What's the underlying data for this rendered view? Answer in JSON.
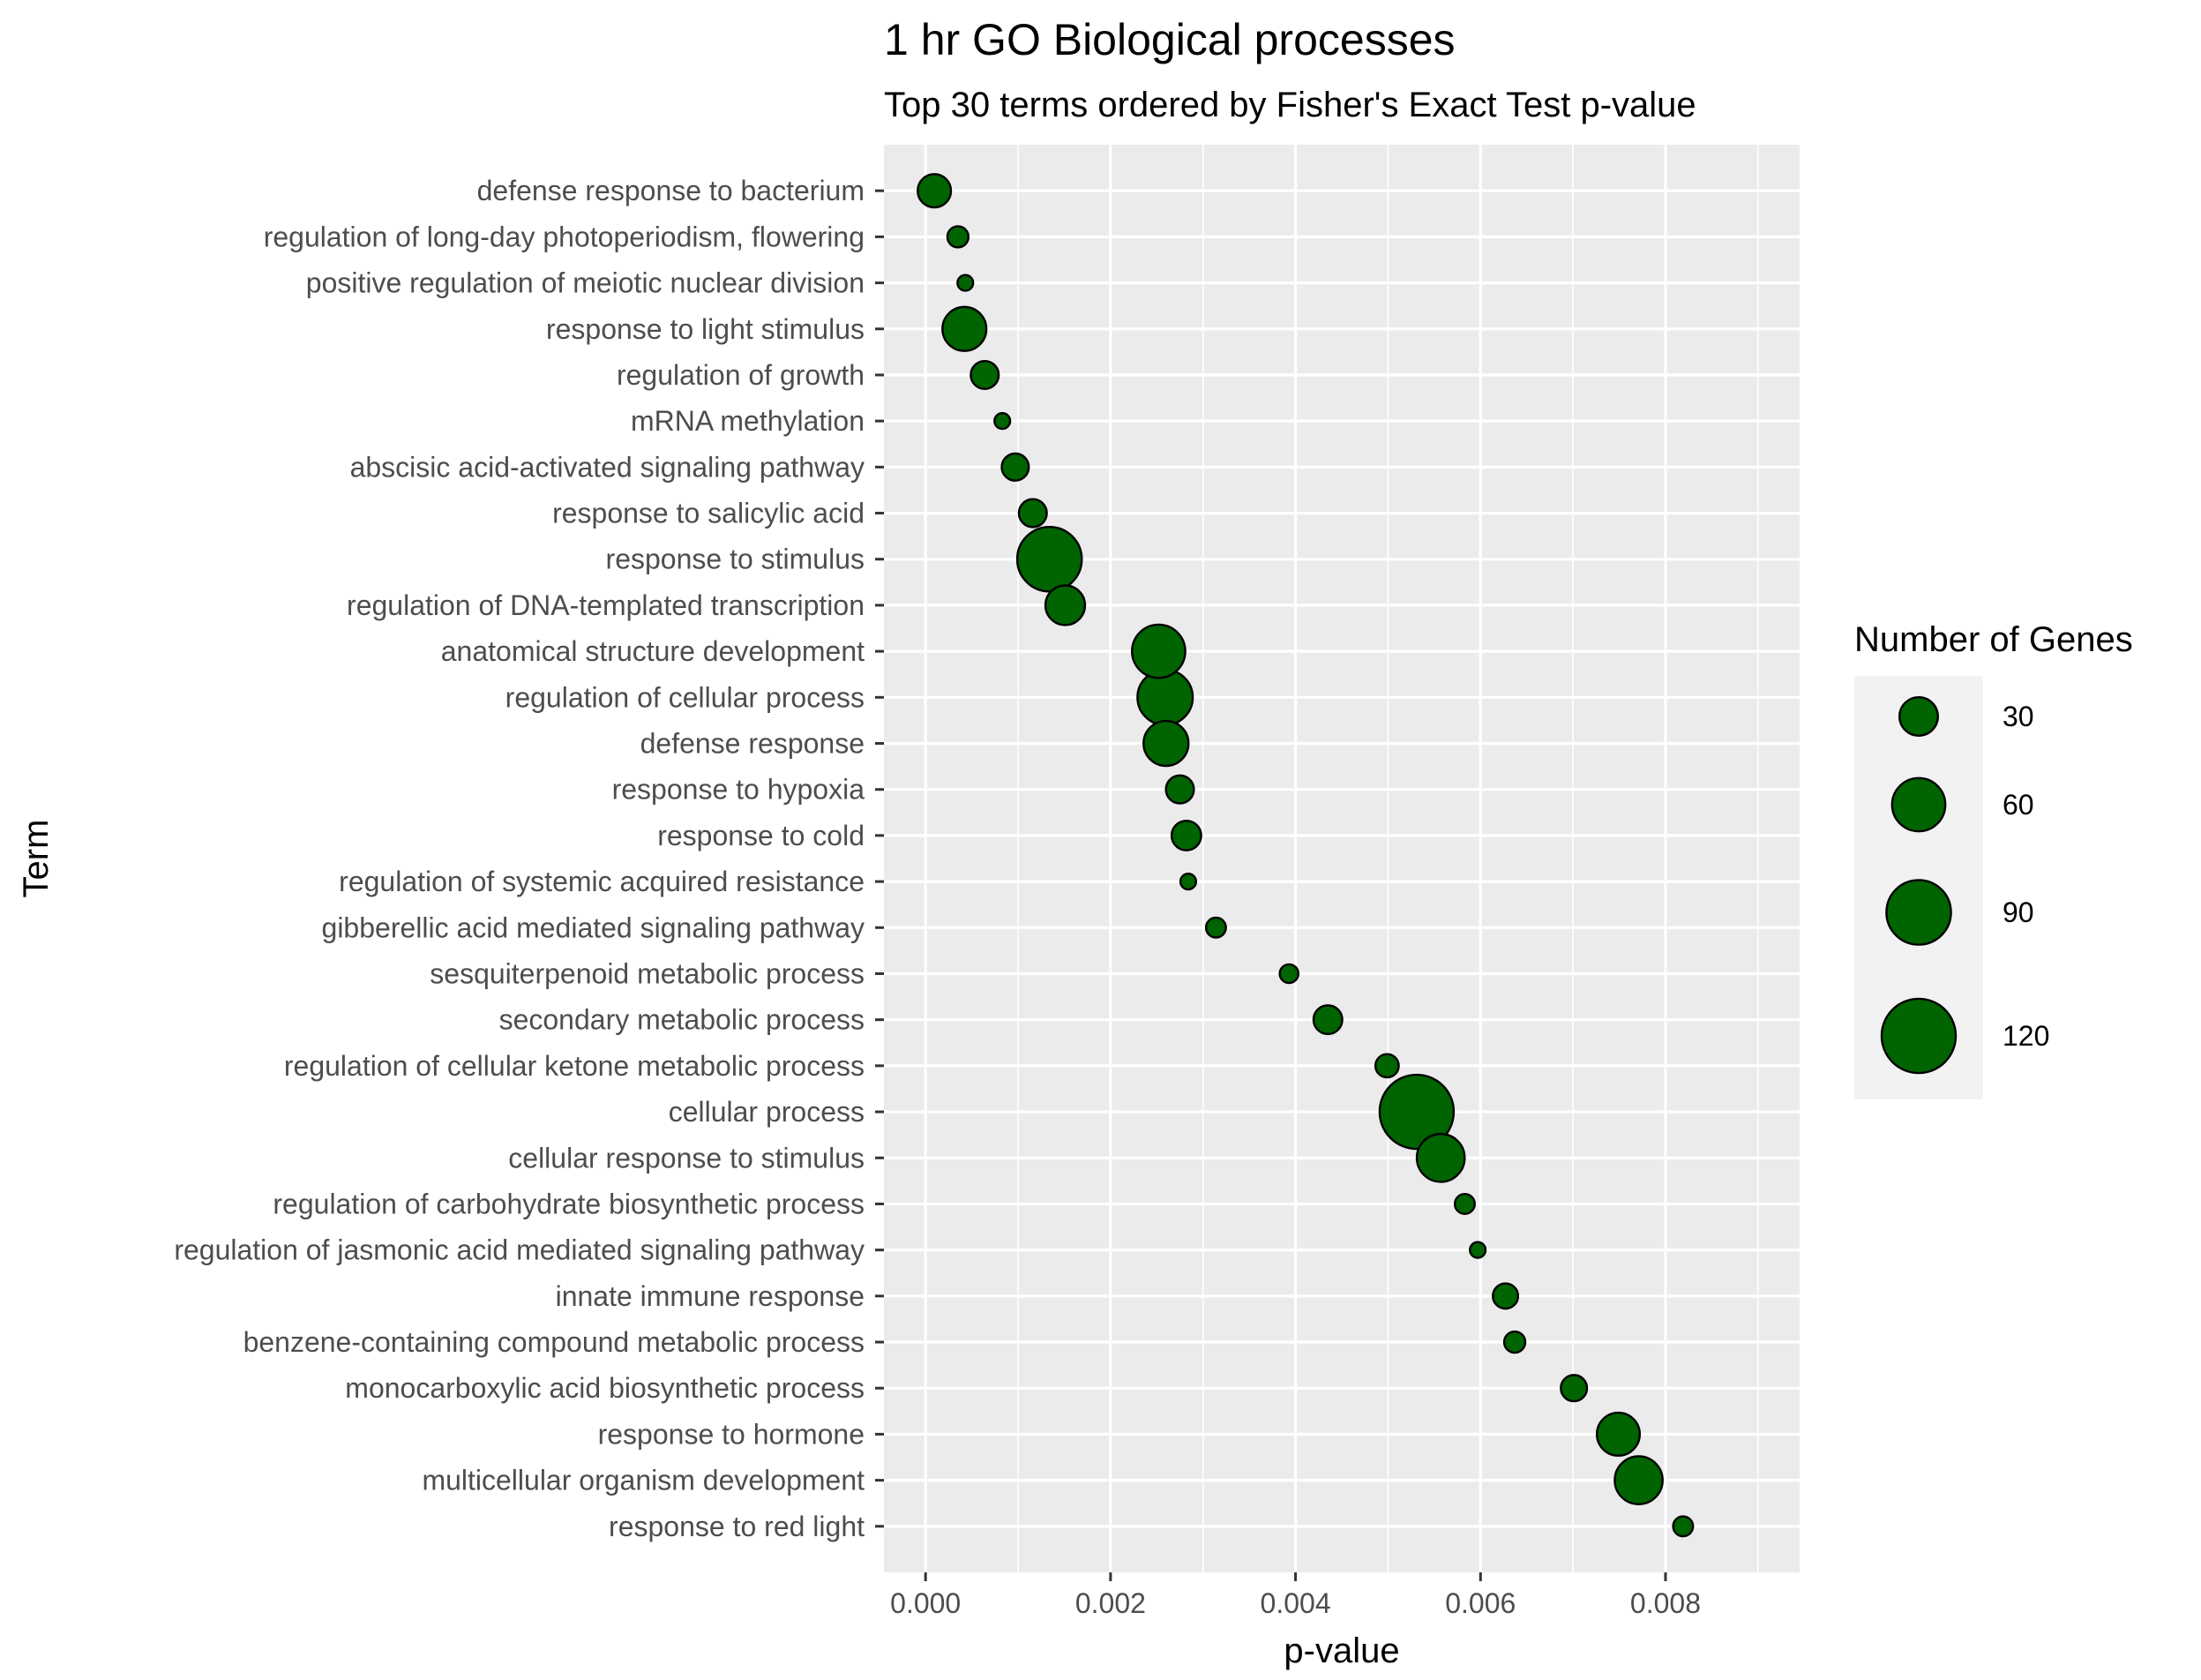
{
  "chart_data": {
    "type": "scatter",
    "title": "1 hr GO Biological processes",
    "subtitle": "Top 30 terms ordered by Fisher's Exact Test p-value",
    "xlabel": "p-value",
    "ylabel": "Term",
    "xlim": [
      -0.00045,
      0.00945
    ],
    "x_ticks": [
      "0.000",
      "0.002",
      "0.004",
      "0.006",
      "0.008"
    ],
    "grid": true,
    "legend_position": "right",
    "marker_fill": "#006400",
    "marker_stroke": "#000000",
    "panel_background": "#EBEBEB",
    "legend": {
      "title": "Number of Genes",
      "entries": [
        {
          "label": "30",
          "value": 30
        },
        {
          "label": "60",
          "value": 60
        },
        {
          "label": "90",
          "value": 90
        },
        {
          "label": "120",
          "value": 120
        }
      ]
    },
    "points": [
      {
        "term": "defense response to bacterium",
        "x": 9.5e-05,
        "genes": 22
      },
      {
        "term": "regulation of long-day photoperiodism, flowering",
        "x": 0.00035,
        "genes": 8
      },
      {
        "term": "positive regulation of meiotic nuclear division",
        "x": 0.00043,
        "genes": 4
      },
      {
        "term": "response to light stimulus",
        "x": 0.00042,
        "genes": 40
      },
      {
        "term": "regulation of growth",
        "x": 0.00064,
        "genes": 15
      },
      {
        "term": "mRNA methylation",
        "x": 0.00083,
        "genes": 4
      },
      {
        "term": "abscisic acid-activated signaling pathway",
        "x": 0.00097,
        "genes": 14
      },
      {
        "term": "response to salicylic acid",
        "x": 0.00116,
        "genes": 15
      },
      {
        "term": "response to stimulus",
        "x": 0.00134,
        "genes": 90
      },
      {
        "term": "regulation of DNA-templated transcription",
        "x": 0.00151,
        "genes": 32
      },
      {
        "term": "anatomical structure development",
        "x": 0.00252,
        "genes": 60
      },
      {
        "term": "regulation of cellular process",
        "x": 0.00259,
        "genes": 65
      },
      {
        "term": "defense response",
        "x": 0.0026,
        "genes": 42
      },
      {
        "term": "response to hypoxia",
        "x": 0.00275,
        "genes": 15
      },
      {
        "term": "response to cold",
        "x": 0.00282,
        "genes": 17
      },
      {
        "term": "regulation of systemic acquired resistance",
        "x": 0.00284,
        "genes": 4
      },
      {
        "term": "gibberellic acid mediated signaling pathway",
        "x": 0.00314,
        "genes": 7
      },
      {
        "term": "sesquiterpenoid metabolic process",
        "x": 0.00393,
        "genes": 6
      },
      {
        "term": "secondary metabolic process",
        "x": 0.00435,
        "genes": 16
      },
      {
        "term": "regulation of cellular ketone metabolic process",
        "x": 0.00499,
        "genes": 10
      },
      {
        "term": "cellular process",
        "x": 0.00531,
        "genes": 120
      },
      {
        "term": "cellular response to stimulus",
        "x": 0.00557,
        "genes": 48
      },
      {
        "term": "regulation of carbohydrate biosynthetic process",
        "x": 0.00583,
        "genes": 7
      },
      {
        "term": "regulation of jasmonic acid mediated signaling pathway",
        "x": 0.00597,
        "genes": 4
      },
      {
        "term": "innate immune response",
        "x": 0.00627,
        "genes": 12
      },
      {
        "term": "benzene-containing compound metabolic process",
        "x": 0.00637,
        "genes": 8
      },
      {
        "term": "monocarboxylic acid biosynthetic process",
        "x": 0.00701,
        "genes": 13
      },
      {
        "term": "response to hormone",
        "x": 0.00749,
        "genes": 38
      },
      {
        "term": "multicellular organism development",
        "x": 0.00771,
        "genes": 48
      },
      {
        "term": "response to red light",
        "x": 0.00819,
        "genes": 7
      }
    ]
  }
}
